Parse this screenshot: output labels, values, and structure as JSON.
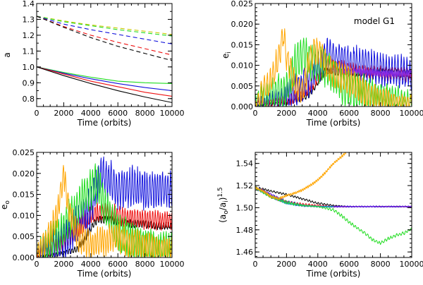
{
  "figure": {
    "annotation": "model G1"
  },
  "colors": {
    "black": "#000000",
    "red": "#ee1111",
    "blue": "#1111dd",
    "green": "#22dd22",
    "orange": "#ffa500",
    "yellow": "#c8c800",
    "purple": "#8a2be2",
    "cyan": "#11b0b0"
  },
  "chart_data": [
    {
      "id": "a",
      "type": "line",
      "xlabel": "Time (orbits)",
      "ylabel": "a",
      "xlim": [
        0,
        10000
      ],
      "ylim": [
        0.75,
        1.4
      ],
      "xticks": [
        0,
        2000,
        4000,
        6000,
        8000,
        10000
      ],
      "yticks": [
        0.8,
        0.9,
        1.0,
        1.1,
        1.2,
        1.3,
        1.4
      ],
      "ytick_labels": [
        "0.8",
        "0.9",
        "1.0",
        "1.1",
        "1.2",
        "1.3",
        "1.4"
      ],
      "series": [
        {
          "name": "outer-yellow",
          "color": "yellow",
          "dashed": true,
          "x": [
            0,
            2000,
            4000,
            6000,
            8000,
            10000
          ],
          "y": [
            1.32,
            1.29,
            1.265,
            1.245,
            1.225,
            1.205
          ]
        },
        {
          "name": "outer-green",
          "color": "green",
          "dashed": true,
          "x": [
            0,
            2000,
            4000,
            6000,
            8000,
            10000
          ],
          "y": [
            1.32,
            1.285,
            1.26,
            1.235,
            1.215,
            1.195
          ]
        },
        {
          "name": "outer-blue",
          "color": "blue",
          "dashed": true,
          "x": [
            0,
            2000,
            4000,
            6000,
            8000,
            10000
          ],
          "y": [
            1.32,
            1.27,
            1.235,
            1.205,
            1.175,
            1.145
          ]
        },
        {
          "name": "outer-red",
          "color": "red",
          "dashed": true,
          "x": [
            0,
            2000,
            4000,
            6000,
            8000,
            10000
          ],
          "y": [
            1.32,
            1.255,
            1.2,
            1.155,
            1.115,
            1.075
          ]
        },
        {
          "name": "outer-black",
          "color": "black",
          "dashed": true,
          "x": [
            0,
            2000,
            4000,
            6000,
            8000,
            10000
          ],
          "y": [
            1.32,
            1.25,
            1.185,
            1.13,
            1.085,
            1.04
          ]
        },
        {
          "name": "inner-green",
          "color": "green",
          "dashed": false,
          "x": [
            0,
            2000,
            4000,
            6000,
            8000,
            10000
          ],
          "y": [
            1.0,
            0.965,
            0.935,
            0.91,
            0.9,
            0.895
          ]
        },
        {
          "name": "inner-blue",
          "color": "blue",
          "dashed": false,
          "x": [
            0,
            2000,
            4000,
            6000,
            8000,
            10000
          ],
          "y": [
            1.0,
            0.96,
            0.925,
            0.895,
            0.87,
            0.85
          ]
        },
        {
          "name": "inner-red",
          "color": "red",
          "dashed": false,
          "x": [
            0,
            2000,
            4000,
            6000,
            8000,
            10000
          ],
          "y": [
            1.0,
            0.955,
            0.91,
            0.875,
            0.84,
            0.815
          ]
        },
        {
          "name": "inner-black",
          "color": "black",
          "dashed": false,
          "x": [
            0,
            2000,
            4000,
            6000,
            8000,
            10000
          ],
          "y": [
            1.0,
            0.945,
            0.895,
            0.85,
            0.81,
            0.775
          ]
        }
      ]
    },
    {
      "id": "ei",
      "type": "line",
      "xlabel": "Time (orbits)",
      "ylabel": "e",
      "ylabel_sub": "i",
      "annotation": "model G1",
      "xlim": [
        0,
        10000
      ],
      "ylim": [
        0,
        0.025
      ],
      "xticks": [
        0,
        2000,
        4000,
        6000,
        8000,
        10000
      ],
      "yticks": [
        0,
        0.005,
        0.01,
        0.015,
        0.02,
        0.025
      ],
      "ytick_labels": [
        "0.000",
        "0.005",
        "0.010",
        "0.015",
        "0.020",
        "0.025"
      ],
      "series": [
        {
          "name": "black",
          "color": "black",
          "x": [
            0,
            1000,
            2000,
            3000,
            3500,
            4000,
            4500,
            5000,
            6000,
            7000,
            8000,
            9000,
            10000
          ],
          "y": [
            0.0,
            0.0005,
            0.001,
            0.002,
            0.003,
            0.006,
            0.009,
            0.0085,
            0.0085,
            0.008,
            0.0085,
            0.008,
            0.008
          ],
          "amp": 0.0008
        },
        {
          "name": "red",
          "color": "red",
          "x": [
            0,
            1000,
            2000,
            3000,
            4000,
            4500,
            5000,
            6000,
            7000,
            8000,
            9000,
            10000
          ],
          "y": [
            0.0005,
            0.001,
            0.0015,
            0.003,
            0.007,
            0.009,
            0.01,
            0.009,
            0.0085,
            0.008,
            0.008,
            0.0075
          ],
          "amp": 0.0015
        },
        {
          "name": "blue",
          "color": "blue",
          "x": [
            0,
            1000,
            2000,
            3000,
            4000,
            4500,
            5000,
            6000,
            7000,
            8000,
            9000,
            10000
          ],
          "y": [
            0.0005,
            0.001,
            0.002,
            0.005,
            0.009,
            0.013,
            0.012,
            0.011,
            0.01,
            0.009,
            0.0085,
            0.008
          ],
          "amp": 0.0035
        },
        {
          "name": "purple",
          "color": "purple",
          "x": [
            5000,
            6000,
            7000,
            8000,
            9000,
            10000
          ],
          "y": [
            0.0085,
            0.0085,
            0.0085,
            0.008,
            0.008,
            0.008
          ],
          "amp": 0.0007
        },
        {
          "name": "green",
          "color": "green",
          "x": [
            0,
            1000,
            2000,
            2500,
            3000,
            3500,
            4000,
            5000,
            5500,
            6000,
            7000,
            8000,
            9000,
            10000
          ],
          "y": [
            0.001,
            0.003,
            0.004,
            0.01,
            0.013,
            0.011,
            0.01,
            0.008,
            0.005,
            0.004,
            0.003,
            0.002,
            0.0015,
            0.001
          ],
          "amp": 0.004
        },
        {
          "name": "orange",
          "color": "orange",
          "x": [
            0,
            500,
            1000,
            1500,
            1800,
            2000,
            2500,
            3000,
            3500,
            4000,
            5000,
            6000,
            7000,
            8000,
            9000,
            10000
          ],
          "y": [
            0.0,
            0.004,
            0.006,
            0.012,
            0.018,
            0.012,
            0.006,
            0.003,
            0.012,
            0.014,
            0.008,
            0.006,
            0.003,
            0.002,
            0.001,
            0.001
          ],
          "amp": 0.003
        }
      ]
    },
    {
      "id": "eo",
      "type": "line",
      "xlabel": "Time (orbits)",
      "ylabel": "e",
      "ylabel_sub": "o",
      "xlim": [
        0,
        10000
      ],
      "ylim": [
        0,
        0.025
      ],
      "xticks": [
        0,
        2000,
        4000,
        6000,
        8000,
        10000
      ],
      "yticks": [
        0,
        0.005,
        0.01,
        0.015,
        0.02,
        0.025
      ],
      "ytick_labels": [
        "0.000",
        "0.005",
        "0.010",
        "0.015",
        "0.020",
        "0.025"
      ],
      "series": [
        {
          "name": "black",
          "color": "black",
          "x": [
            0,
            1000,
            2000,
            3000,
            3500,
            4000,
            4500,
            5000,
            6000,
            7000,
            8000,
            9000,
            10000
          ],
          "y": [
            0.0,
            0.0005,
            0.001,
            0.002,
            0.004,
            0.007,
            0.009,
            0.009,
            0.0085,
            0.008,
            0.008,
            0.0075,
            0.0075
          ],
          "amp": 0.0008
        },
        {
          "name": "red",
          "color": "red",
          "x": [
            0,
            1000,
            2000,
            3000,
            4000,
            5000,
            6000,
            7000,
            8000,
            9000,
            10000
          ],
          "y": [
            0.0005,
            0.002,
            0.004,
            0.007,
            0.01,
            0.011,
            0.01,
            0.0095,
            0.009,
            0.009,
            0.0085
          ],
          "amp": 0.002
        },
        {
          "name": "blue",
          "color": "blue",
          "x": [
            0,
            1000,
            2000,
            3000,
            4000,
            4800,
            5500,
            6000,
            7000,
            8000,
            9000,
            10000
          ],
          "y": [
            0.001,
            0.002,
            0.004,
            0.008,
            0.012,
            0.02,
            0.018,
            0.016,
            0.017,
            0.016,
            0.016,
            0.016
          ],
          "amp": 0.004
        },
        {
          "name": "green",
          "color": "green",
          "x": [
            0,
            1000,
            2000,
            3000,
            3500,
            4000,
            4500,
            5000,
            6000,
            7000,
            8000,
            9000,
            10000
          ],
          "y": [
            0.001,
            0.003,
            0.007,
            0.012,
            0.015,
            0.016,
            0.018,
            0.012,
            0.006,
            0.004,
            0.003,
            0.002,
            0.002
          ],
          "amp": 0.004
        },
        {
          "name": "orange",
          "color": "orange",
          "x": [
            0,
            500,
            1000,
            1500,
            2000,
            2200,
            2500,
            3000,
            4000,
            5000,
            6000,
            7000,
            8000,
            9000,
            10000
          ],
          "y": [
            0.001,
            0.003,
            0.006,
            0.01,
            0.02,
            0.015,
            0.01,
            0.005,
            0.003,
            0.004,
            0.005,
            0.003,
            0.003,
            0.002,
            0.002
          ],
          "amp": 0.003
        }
      ]
    },
    {
      "id": "ratio",
      "type": "line",
      "xlabel": "Time (orbits)",
      "ylabel": "(a",
      "ylabel_sub": "o",
      "ylabel_mid": "/a",
      "ylabel_sub2": "i",
      "ylabel_end": ")",
      "ylabel_sup": "1.5",
      "xlim": [
        0,
        10000
      ],
      "ylim": [
        1.455,
        1.55
      ],
      "xticks": [
        0,
        2000,
        4000,
        6000,
        8000,
        10000
      ],
      "yticks": [
        1.46,
        1.48,
        1.5,
        1.52,
        1.54
      ],
      "ytick_labels": [
        "1.46",
        "1.48",
        "1.50",
        "1.52",
        "1.54"
      ],
      "series": [
        {
          "name": "black",
          "color": "black",
          "x": [
            0,
            500,
            1000,
            2000,
            3000,
            4000,
            5000,
            6000,
            7000,
            8000,
            9000,
            10000
          ],
          "y": [
            1.518,
            1.517,
            1.515,
            1.512,
            1.508,
            1.504,
            1.502,
            1.501,
            1.501,
            1.501,
            1.501,
            1.501
          ],
          "amp": 0.0008
        },
        {
          "name": "red",
          "color": "red",
          "x": [
            0,
            500,
            1000,
            2000,
            3000,
            4000,
            5000,
            6000,
            7000,
            8000,
            9000,
            10000
          ],
          "y": [
            1.518,
            1.515,
            1.51,
            1.505,
            1.503,
            1.502,
            1.501,
            1.501,
            1.501,
            1.501,
            1.501,
            1.501
          ],
          "amp": 0.0012
        },
        {
          "name": "blue",
          "color": "blue",
          "x": [
            0,
            500,
            1000,
            2000,
            3000,
            4000,
            5000,
            6000,
            7000,
            8000,
            9000,
            10000
          ],
          "y": [
            1.518,
            1.515,
            1.511,
            1.505,
            1.502,
            1.501,
            1.501,
            1.501,
            1.501,
            1.501,
            1.501,
            1.501
          ],
          "amp": 0.0015
        },
        {
          "name": "purple",
          "color": "purple",
          "x": [
            0,
            1000,
            2000,
            3000,
            4000,
            5000,
            6000,
            7000,
            8000,
            9000,
            10000
          ],
          "y": [
            1.518,
            1.512,
            1.505,
            1.502,
            1.501,
            1.501,
            1.501,
            1.501,
            1.501,
            1.501,
            1.501
          ],
          "amp": 0.001
        },
        {
          "name": "cyan",
          "color": "cyan",
          "x": [
            0,
            1000,
            2000,
            3000,
            4000,
            5000
          ],
          "y": [
            1.518,
            1.51,
            1.504,
            1.502,
            1.501,
            1.501
          ],
          "amp": 0.0008
        },
        {
          "name": "green",
          "color": "green",
          "x": [
            0,
            1000,
            2000,
            3000,
            4000,
            5000,
            5500,
            6000,
            6500,
            7000,
            7500,
            8000,
            8500,
            9000,
            9500,
            10000
          ],
          "y": [
            1.518,
            1.51,
            1.505,
            1.502,
            1.501,
            1.498,
            1.493,
            1.487,
            1.482,
            1.477,
            1.471,
            1.468,
            1.472,
            1.475,
            1.477,
            1.481
          ],
          "amp": 0.0012
        },
        {
          "name": "orange",
          "color": "orange",
          "x": [
            0,
            500,
            1000,
            1500,
            2000,
            2500,
            3000,
            3500,
            4000,
            4500,
            5000,
            5500,
            5800
          ],
          "y": [
            1.518,
            1.515,
            1.51,
            1.508,
            1.511,
            1.513,
            1.516,
            1.52,
            1.525,
            1.532,
            1.54,
            1.546,
            1.55
          ],
          "amp": 0.001
        }
      ]
    }
  ]
}
